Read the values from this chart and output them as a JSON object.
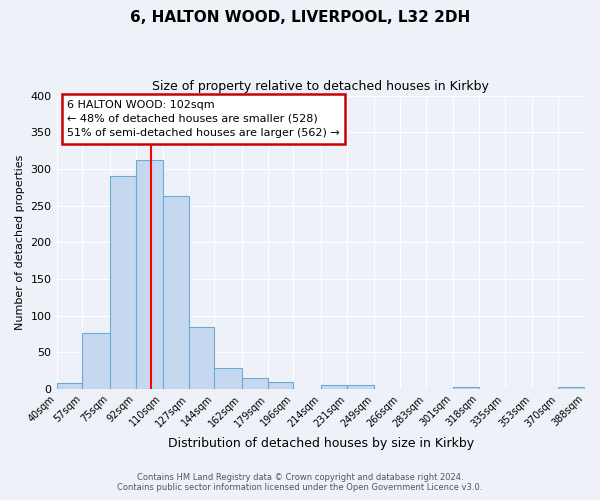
{
  "title": "6, HALTON WOOD, LIVERPOOL, L32 2DH",
  "subtitle": "Size of property relative to detached houses in Kirkby",
  "xlabel": "Distribution of detached houses by size in Kirkby",
  "ylabel": "Number of detached properties",
  "bin_labels": [
    "40sqm",
    "57sqm",
    "75sqm",
    "92sqm",
    "110sqm",
    "127sqm",
    "144sqm",
    "162sqm",
    "179sqm",
    "196sqm",
    "214sqm",
    "231sqm",
    "249sqm",
    "266sqm",
    "283sqm",
    "301sqm",
    "318sqm",
    "335sqm",
    "353sqm",
    "370sqm",
    "388sqm"
  ],
  "bin_edges": [
    40,
    57,
    75,
    92,
    110,
    127,
    144,
    162,
    179,
    196,
    214,
    231,
    249,
    266,
    283,
    301,
    318,
    335,
    353,
    370,
    388
  ],
  "bar_heights": [
    8,
    76,
    290,
    312,
    263,
    85,
    29,
    15,
    9,
    0,
    5,
    5,
    0,
    0,
    0,
    2,
    0,
    0,
    0,
    2
  ],
  "bar_color": "#c5d8f0",
  "bar_edge_color": "#6aaad4",
  "vline_x": 102,
  "vline_color": "red",
  "annotation_line1": "6 HALTON WOOD: 102sqm",
  "annotation_line2": "← 48% of detached houses are smaller (528)",
  "annotation_line3": "51% of semi-detached houses are larger (562) →",
  "annotation_box_color": "#cc0000",
  "ylim": [
    0,
    400
  ],
  "yticks": [
    0,
    50,
    100,
    150,
    200,
    250,
    300,
    350,
    400
  ],
  "footer_line1": "Contains HM Land Registry data © Crown copyright and database right 2024.",
  "footer_line2": "Contains public sector information licensed under the Open Government Licence v3.0.",
  "bg_color": "#eef2f8",
  "grid_color": "#ffffff",
  "plot_bg_color": "#eef2f8"
}
